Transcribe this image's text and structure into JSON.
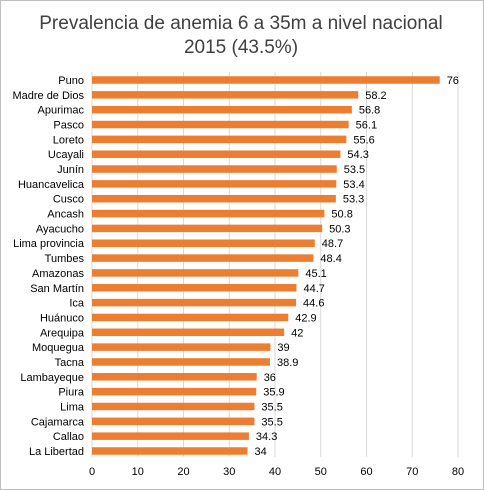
{
  "chart_data": {
    "type": "bar",
    "orientation": "horizontal",
    "title_line1": "Prevalencia de anemia 6 a 35m a nivel nacional",
    "title_line2": "2015 (43.5%)",
    "categories": [
      "Puno",
      "Madre de Dios",
      "Apurimac",
      "Pasco",
      "Loreto",
      "Ucayali",
      "Junín",
      "Huancavelica",
      "Cusco",
      "Ancash",
      "Ayacucho",
      "Lima provincia",
      "Tumbes",
      "Amazonas",
      "San Martín",
      "Ica",
      "Huánuco",
      "Arequipa",
      "Moquegua",
      "Tacna",
      "Lambayeque",
      "Piura",
      "Lima",
      "Cajamarca",
      "Callao",
      "La Libertad"
    ],
    "values": [
      76,
      58.2,
      56.8,
      56.1,
      55.6,
      54.3,
      53.5,
      53.4,
      53.3,
      50.8,
      50.3,
      48.7,
      48.4,
      45.1,
      44.7,
      44.6,
      42.9,
      42,
      39,
      38.9,
      36,
      35.9,
      35.5,
      35.5,
      34.3,
      34
    ],
    "value_labels": [
      "76",
      "58.2",
      "56.8",
      "56.1",
      "55.6",
      "54.3",
      "53.5",
      "53.4",
      "53.3",
      "50.8",
      "50.3",
      "48.7",
      "48.4",
      "45.1",
      "44.7",
      "44.6",
      "42.9",
      "42",
      "39",
      "38.9",
      "36",
      "35.9",
      "35.5",
      "35.5",
      "34.3",
      "34"
    ],
    "xlim": [
      0,
      80
    ],
    "x_ticks": [
      "0",
      "10",
      "20",
      "30",
      "40",
      "50",
      "60",
      "70",
      "80"
    ],
    "grid": true,
    "legend": "none",
    "bar_color": "#ed7d31",
    "grid_color": "#d9d9d9",
    "text_color": "#000000"
  }
}
